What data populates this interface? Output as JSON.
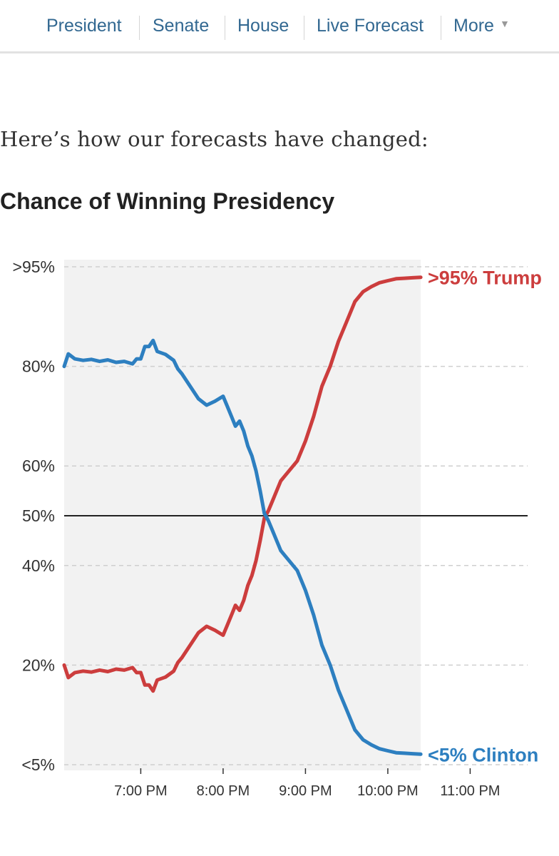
{
  "nav": {
    "items": [
      "President",
      "Senate",
      "House",
      "Live Forecast",
      "More"
    ],
    "caret_icon": "triangle-down-icon"
  },
  "intro_text": "Here’s how our forecasts have changed:",
  "chart_data": {
    "type": "line",
    "title": "Chance of Winning Presidency",
    "xlabel": "",
    "ylabel": "",
    "x_unit": "hours (decimal, 24h clock)",
    "x_range": [
      6.07,
      11.75
    ],
    "x_ticks": [
      {
        "x": 7,
        "label": "7:00 PM"
      },
      {
        "x": 8,
        "label": "8:00 PM"
      },
      {
        "x": 9,
        "label": "9:00 PM"
      },
      {
        "x": 10,
        "label": "10:00 PM"
      },
      {
        "x": 11,
        "label": "11:00 PM"
      }
    ],
    "y_unit": "percent",
    "y_range": [
      0,
      100
    ],
    "y_ticks": [
      {
        "y": 0,
        "label": "<5%"
      },
      {
        "y": 20,
        "label": "20%"
      },
      {
        "y": 40,
        "label": "40%"
      },
      {
        "y": 50,
        "label": "50%"
      },
      {
        "y": 60,
        "label": "60%"
      },
      {
        "y": 80,
        "label": "80%"
      },
      {
        "y": 100,
        "label": ">95%"
      }
    ],
    "grid": "dashed horizontal",
    "reference_line": 50,
    "shaded_x_range": [
      6.07,
      10.4
    ],
    "series": [
      {
        "name": "Trump",
        "end_label": ">95% Trump",
        "color": "#cc3d3d",
        "points": [
          [
            6.07,
            20
          ],
          [
            6.12,
            17.5
          ],
          [
            6.2,
            18.5
          ],
          [
            6.3,
            18.8
          ],
          [
            6.4,
            18.6
          ],
          [
            6.5,
            19
          ],
          [
            6.6,
            18.7
          ],
          [
            6.7,
            19.2
          ],
          [
            6.8,
            19
          ],
          [
            6.9,
            19.5
          ],
          [
            6.95,
            18.5
          ],
          [
            7.0,
            18.5
          ],
          [
            7.05,
            16
          ],
          [
            7.1,
            16
          ],
          [
            7.15,
            14.8
          ],
          [
            7.2,
            17
          ],
          [
            7.3,
            17.6
          ],
          [
            7.4,
            18.8
          ],
          [
            7.45,
            20.5
          ],
          [
            7.5,
            21.5
          ],
          [
            7.6,
            24
          ],
          [
            7.7,
            26.5
          ],
          [
            7.8,
            27.8
          ],
          [
            7.9,
            27
          ],
          [
            8.0,
            26
          ],
          [
            8.05,
            28
          ],
          [
            8.1,
            30
          ],
          [
            8.15,
            32
          ],
          [
            8.2,
            31
          ],
          [
            8.25,
            33
          ],
          [
            8.3,
            36
          ],
          [
            8.35,
            38
          ],
          [
            8.4,
            41
          ],
          [
            8.45,
            45
          ],
          [
            8.5,
            49.5
          ],
          [
            8.55,
            51
          ],
          [
            8.6,
            53
          ],
          [
            8.65,
            55
          ],
          [
            8.7,
            57
          ],
          [
            8.75,
            58
          ],
          [
            8.8,
            59
          ],
          [
            8.9,
            61
          ],
          [
            9.0,
            65
          ],
          [
            9.1,
            70
          ],
          [
            9.2,
            76
          ],
          [
            9.3,
            80
          ],
          [
            9.4,
            85
          ],
          [
            9.5,
            89
          ],
          [
            9.6,
            93
          ],
          [
            9.7,
            95
          ],
          [
            9.8,
            96
          ],
          [
            9.9,
            96.8
          ],
          [
            10.0,
            97.2
          ],
          [
            10.1,
            97.6
          ],
          [
            10.2,
            97.7
          ],
          [
            10.3,
            97.8
          ],
          [
            10.4,
            97.9
          ]
        ]
      },
      {
        "name": "Clinton",
        "end_label": "<5% Clinton",
        "color": "#2d7fc0",
        "points": [
          [
            6.07,
            80
          ],
          [
            6.12,
            82.5
          ],
          [
            6.2,
            81.5
          ],
          [
            6.3,
            81.2
          ],
          [
            6.4,
            81.4
          ],
          [
            6.5,
            81
          ],
          [
            6.6,
            81.3
          ],
          [
            6.7,
            80.8
          ],
          [
            6.8,
            81
          ],
          [
            6.9,
            80.5
          ],
          [
            6.95,
            81.5
          ],
          [
            7.0,
            81.5
          ],
          [
            7.05,
            84
          ],
          [
            7.1,
            84
          ],
          [
            7.15,
            85.2
          ],
          [
            7.2,
            83
          ],
          [
            7.3,
            82.4
          ],
          [
            7.4,
            81.2
          ],
          [
            7.45,
            79.5
          ],
          [
            7.5,
            78.5
          ],
          [
            7.6,
            76
          ],
          [
            7.7,
            73.5
          ],
          [
            7.8,
            72.2
          ],
          [
            7.9,
            73
          ],
          [
            8.0,
            74
          ],
          [
            8.05,
            72
          ],
          [
            8.1,
            70
          ],
          [
            8.15,
            68
          ],
          [
            8.2,
            69
          ],
          [
            8.25,
            67
          ],
          [
            8.3,
            64
          ],
          [
            8.35,
            62
          ],
          [
            8.4,
            59
          ],
          [
            8.45,
            55
          ],
          [
            8.5,
            50.5
          ],
          [
            8.55,
            49
          ],
          [
            8.6,
            47
          ],
          [
            8.65,
            45
          ],
          [
            8.7,
            43
          ],
          [
            8.75,
            42
          ],
          [
            8.8,
            41
          ],
          [
            8.9,
            39
          ],
          [
            9.0,
            35
          ],
          [
            9.1,
            30
          ],
          [
            9.2,
            24
          ],
          [
            9.3,
            20
          ],
          [
            9.4,
            15
          ],
          [
            9.5,
            11
          ],
          [
            9.6,
            7
          ],
          [
            9.7,
            5
          ],
          [
            9.8,
            4
          ],
          [
            9.9,
            3.2
          ],
          [
            10.0,
            2.8
          ],
          [
            10.1,
            2.4
          ],
          [
            10.2,
            2.3
          ],
          [
            10.3,
            2.2
          ],
          [
            10.4,
            2.1
          ]
        ]
      }
    ]
  }
}
